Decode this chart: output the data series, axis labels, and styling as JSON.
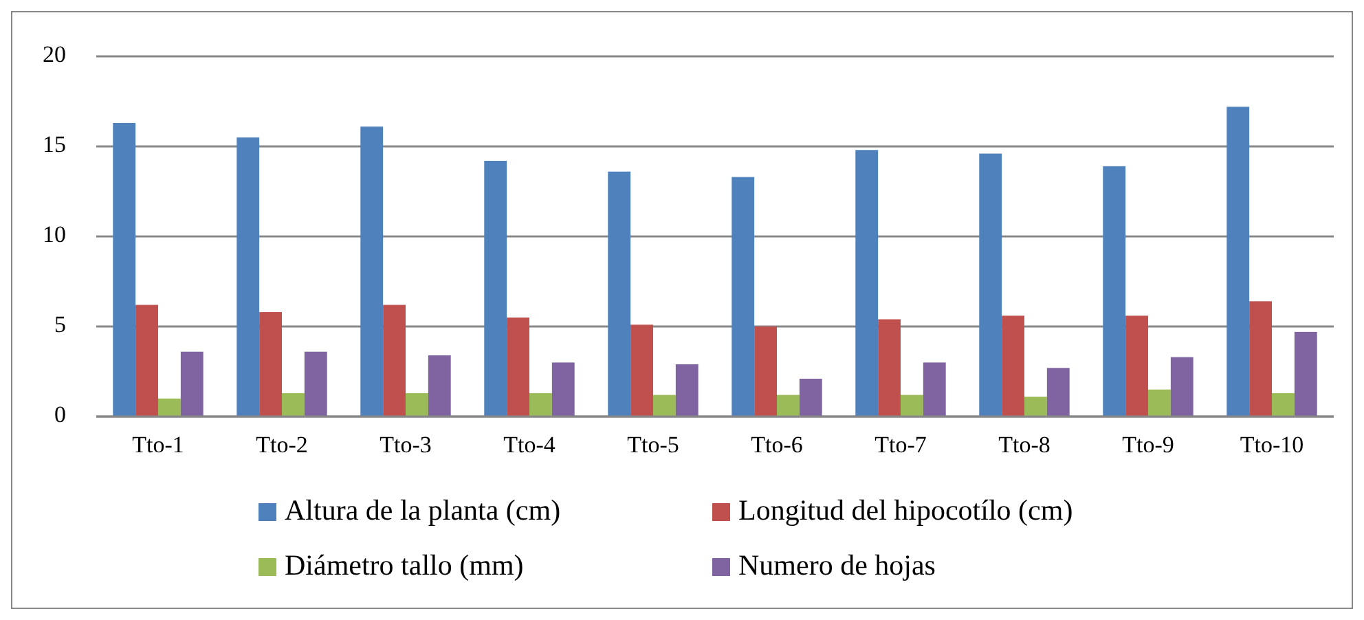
{
  "chart_data": {
    "type": "bar",
    "categories": [
      "Tto-1",
      "Tto-2",
      "Tto-3",
      "Tto-4",
      "Tto-5",
      "Tto-6",
      "Tto-7",
      "Tto-8",
      "Tto-9",
      "Tto-10"
    ],
    "series": [
      {
        "name": "Altura de la planta (cm)",
        "color": "#4f81bd",
        "values": [
          16.3,
          15.5,
          16.1,
          14.2,
          13.6,
          13.3,
          14.8,
          14.6,
          13.9,
          17.2
        ]
      },
      {
        "name": "Longitud del hipocotílo (cm)",
        "color": "#c0504d",
        "values": [
          6.2,
          5.8,
          6.2,
          5.5,
          5.1,
          5.0,
          5.4,
          5.6,
          5.6,
          6.4
        ]
      },
      {
        "name": "Diámetro tallo (mm)",
        "color": "#9bbb59",
        "values": [
          1.0,
          1.3,
          1.3,
          1.3,
          1.2,
          1.2,
          1.2,
          1.1,
          1.5,
          1.3
        ]
      },
      {
        "name": "Numero de hojas",
        "color": "#8064a2",
        "values": [
          3.6,
          3.6,
          3.4,
          3.0,
          2.9,
          2.1,
          3.0,
          2.7,
          3.3,
          4.7
        ]
      }
    ],
    "ylim": [
      0,
      20
    ],
    "yticks": [
      0,
      5,
      10,
      15,
      20
    ],
    "grid": "y",
    "legend": "bottom"
  }
}
